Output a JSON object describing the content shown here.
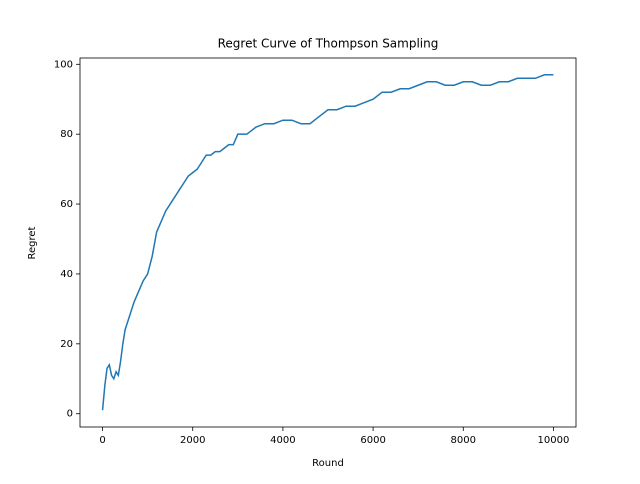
{
  "chart_data": {
    "type": "line",
    "title": "Regret Curve of Thompson Sampling",
    "x_label": "Round",
    "y_label": "Regret",
    "x": [
      0,
      50,
      100,
      150,
      200,
      250,
      300,
      350,
      400,
      450,
      500,
      600,
      700,
      800,
      900,
      1000,
      1100,
      1200,
      1300,
      1400,
      1500,
      1600,
      1700,
      1800,
      1900,
      2000,
      2100,
      2200,
      2300,
      2400,
      2500,
      2600,
      2700,
      2800,
      2900,
      3000,
      3200,
      3400,
      3600,
      3800,
      4000,
      4200,
      4400,
      4600,
      4800,
      5000,
      5200,
      5400,
      5600,
      5800,
      6000,
      6200,
      6400,
      6600,
      6800,
      7000,
      7200,
      7400,
      7600,
      7800,
      8000,
      8200,
      8400,
      8600,
      8800,
      9000,
      9200,
      9400,
      9600,
      9800,
      9999
    ],
    "values": [
      1,
      8,
      13,
      14,
      11,
      10,
      12,
      11,
      15,
      20,
      24,
      28,
      32,
      35,
      38,
      40,
      45,
      52,
      55,
      58,
      60,
      62,
      64,
      66,
      68,
      69,
      70,
      72,
      74,
      74,
      75,
      75,
      76,
      77,
      77,
      80,
      80,
      82,
      83,
      83,
      84,
      84,
      83,
      83,
      85,
      87,
      87,
      88,
      88,
      89,
      90,
      92,
      92,
      93,
      93,
      94,
      95,
      95,
      94,
      94,
      95,
      95,
      94,
      94,
      95,
      95,
      96,
      96,
      96,
      97,
      97
    ],
    "color": "#1f77b4",
    "xlim": [
      -500,
      10500
    ],
    "ylim": [
      -3.8,
      101.8
    ],
    "xticks": [
      0,
      2000,
      4000,
      6000,
      8000,
      10000
    ],
    "yticks": [
      0,
      20,
      40,
      60,
      80,
      100
    ]
  }
}
